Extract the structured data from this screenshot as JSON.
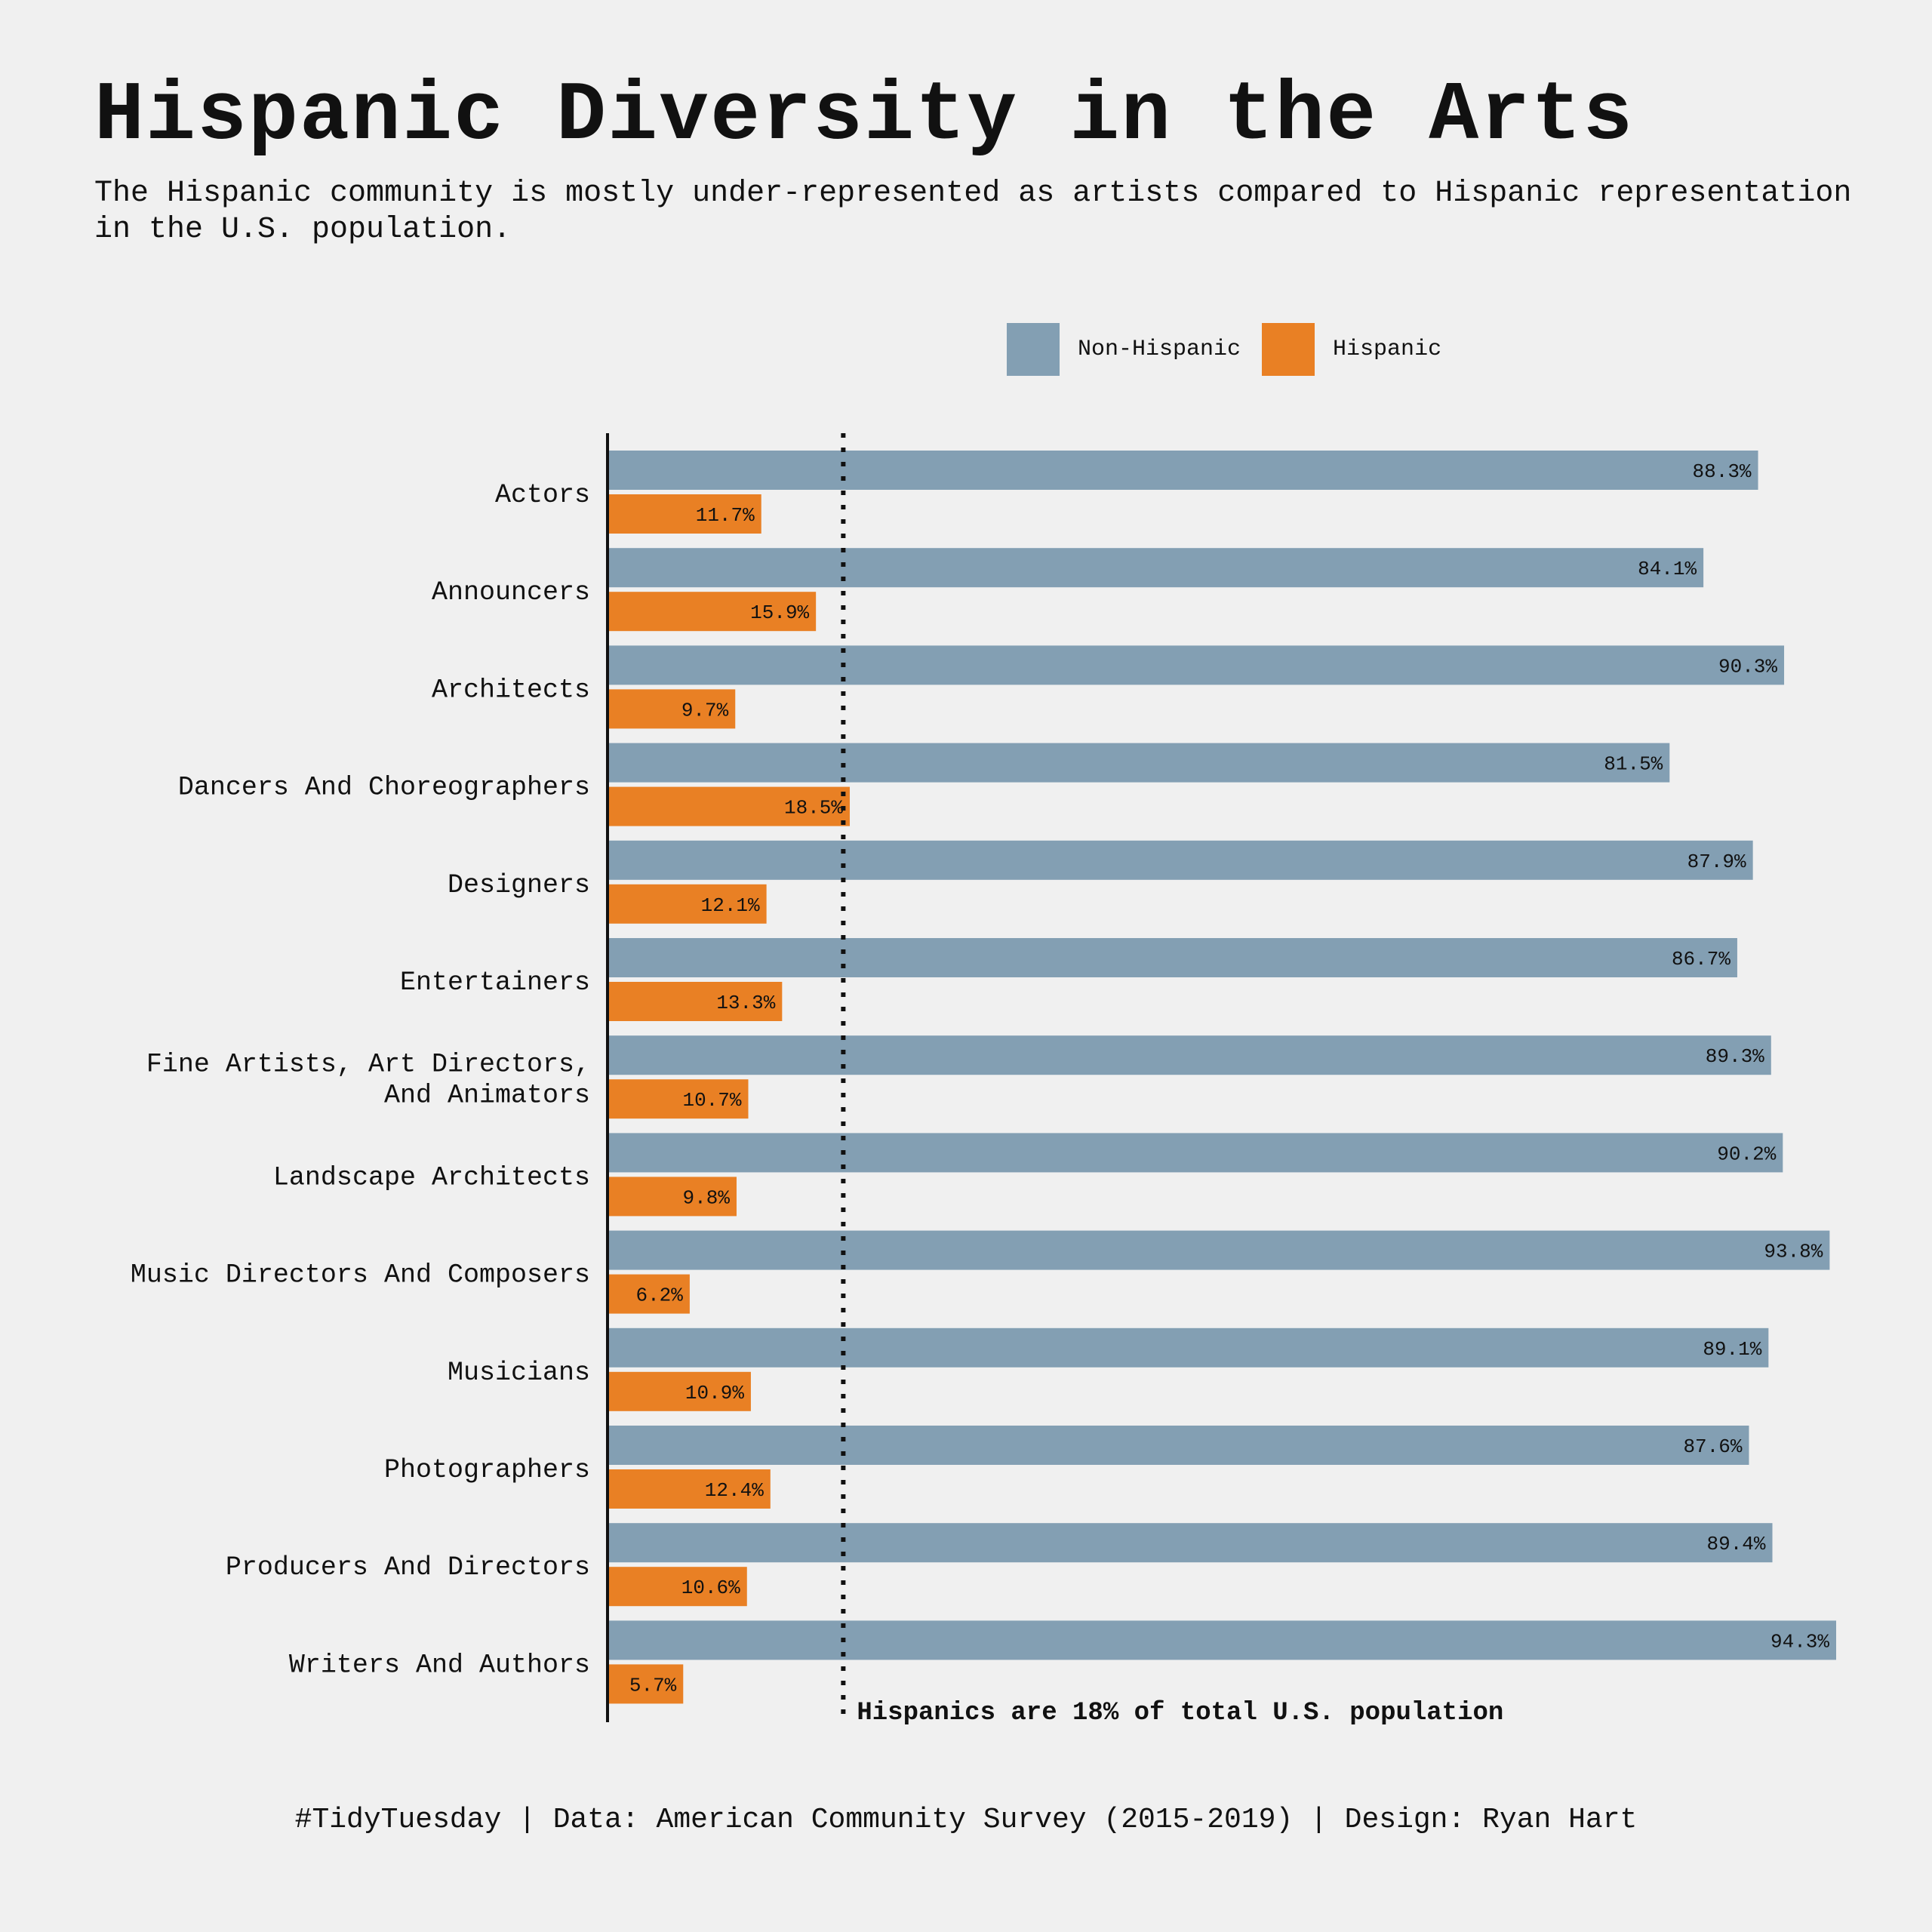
{
  "title": "Hispanic Diversity in the Arts",
  "subtitle": "The Hispanic community is mostly under-represented as artists compared to Hispanic representation in the U.S. population.",
  "footer": "#TidyTuesday | Data: American Community Survey (2015-2019) | Design: Ryan Hart",
  "colors": {
    "background": "#f0f0f0",
    "non_hispanic": "#839fb3",
    "hispanic": "#e98024",
    "text": "#111111"
  },
  "chart_data": {
    "type": "bar",
    "orientation": "horizontal",
    "categories": [
      "Actors",
      "Announcers",
      "Architects",
      "Dancers And Choreographers",
      "Designers",
      "Entertainers",
      "Fine Artists, Art Directors, And Animators",
      "Landscape Architects",
      "Music Directors And Composers",
      "Musicians",
      "Photographers",
      "Producers And Directors",
      "Writers And Authors"
    ],
    "category_lines": [
      [
        "Actors"
      ],
      [
        "Announcers"
      ],
      [
        "Architects"
      ],
      [
        "Dancers And Choreographers"
      ],
      [
        "Designers"
      ],
      [
        "Entertainers"
      ],
      [
        "Fine Artists, Art Directors,",
        "And Animators"
      ],
      [
        "Landscape Architects"
      ],
      [
        "Music Directors And Composers"
      ],
      [
        "Musicians"
      ],
      [
        "Photographers"
      ],
      [
        "Producers And Directors"
      ],
      [
        "Writers And Authors"
      ]
    ],
    "series": [
      {
        "name": "Non-Hispanic",
        "color": "#839fb3",
        "values": [
          88.3,
          84.1,
          90.3,
          81.5,
          87.9,
          86.7,
          89.3,
          90.2,
          93.8,
          89.1,
          87.6,
          89.4,
          94.3
        ]
      },
      {
        "name": "Hispanic",
        "color": "#e98024",
        "values": [
          11.7,
          15.9,
          9.7,
          18.5,
          12.1,
          13.3,
          10.7,
          9.8,
          6.2,
          10.9,
          12.4,
          10.6,
          5.7
        ]
      }
    ],
    "value_suffix": "%",
    "xlim": [
      0,
      94.3
    ],
    "reference_line": {
      "value": 18,
      "style": "dotted",
      "label": "Hispanics are 18% of total U.S. population"
    },
    "legend_position": "top-right",
    "grid": false
  }
}
